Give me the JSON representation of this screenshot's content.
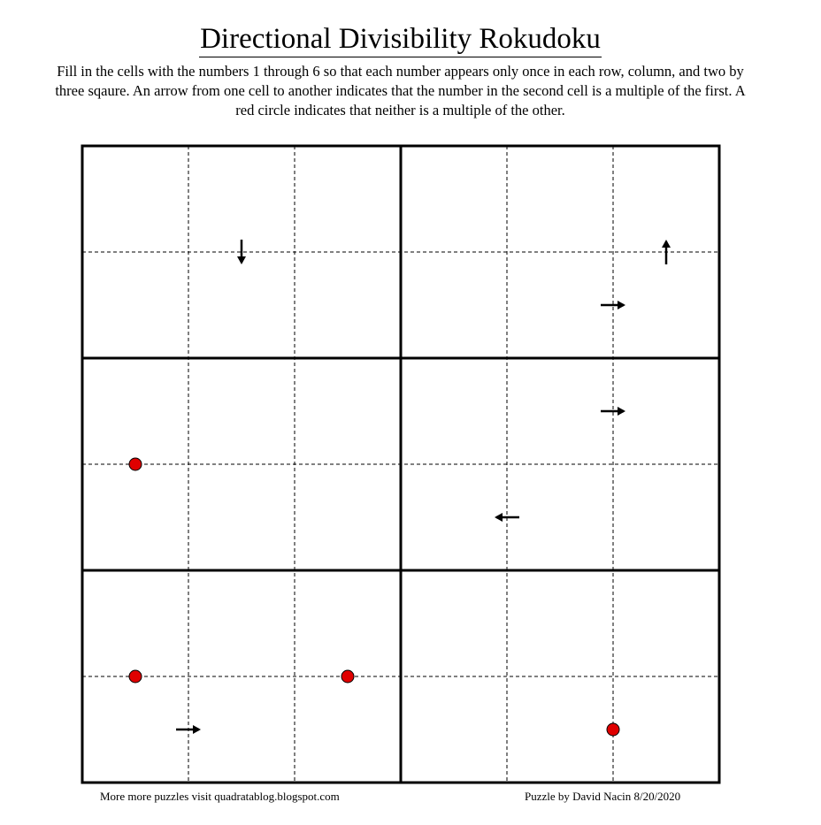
{
  "title": "Directional Divisibility Rokudoku",
  "instructions": "Fill in the cells with the numbers 1 through 6 so that each number appears only once in each row, column, and two by three sqaure.  An arrow from one cell to another indicates that the number in the second cell is a multiple of the first.  A red circle indicates that neither is a multiple of the other.",
  "footer": {
    "left": "More more puzzles visit quadratablog.blogspot.com",
    "right": "Puzzle by David Nacin 8/20/2020"
  },
  "puzzle": {
    "size": 6,
    "box_rows": 2,
    "box_cols": 3,
    "circle_color": "#e00000",
    "arrows": [
      {
        "between": [
          [
            0,
            1
          ],
          [
            1,
            1
          ]
        ],
        "direction": "down"
      },
      {
        "between": [
          [
            0,
            5
          ],
          [
            1,
            5
          ]
        ],
        "direction": "up"
      },
      {
        "between": [
          [
            1,
            4
          ],
          [
            1,
            5
          ]
        ],
        "direction": "right"
      },
      {
        "between": [
          [
            2,
            4
          ],
          [
            2,
            5
          ]
        ],
        "direction": "right"
      },
      {
        "between": [
          [
            3,
            3
          ],
          [
            3,
            4
          ]
        ],
        "direction": "left"
      },
      {
        "between": [
          [
            5,
            0
          ],
          [
            5,
            1
          ]
        ],
        "direction": "right"
      }
    ],
    "circles": [
      {
        "between": [
          [
            2,
            0
          ],
          [
            3,
            0
          ]
        ]
      },
      {
        "between": [
          [
            4,
            0
          ],
          [
            5,
            0
          ]
        ]
      },
      {
        "between": [
          [
            4,
            2
          ],
          [
            5,
            2
          ]
        ]
      },
      {
        "between": [
          [
            5,
            4
          ],
          [
            5,
            5
          ]
        ]
      }
    ]
  }
}
